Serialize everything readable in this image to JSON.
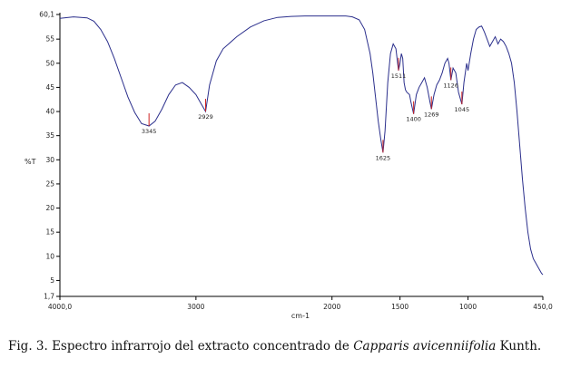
{
  "caption": {
    "prefix": "Fig. 3. Espectro infrarrojo del extracto concentrado de ",
    "species": "Capparis avicenniifolia",
    "suffix": " Kunth."
  },
  "chart_data": {
    "type": "line",
    "title": "",
    "xlabel": "cm-1",
    "ylabel": "%T",
    "xlim": [
      4000.0,
      450.0
    ],
    "ylim": [
      1.7,
      60.1
    ],
    "x_reversed": true,
    "x_ticks": [
      "4000,0",
      "3000",
      "2000",
      "1500",
      "1000",
      "450,0"
    ],
    "x_tick_values": [
      4000,
      3000,
      2000,
      1500,
      1000,
      450
    ],
    "y_ticks": [
      "60,1",
      "55",
      "50",
      "45",
      "40",
      "35",
      "30",
      "25",
      "20",
      "15",
      "10",
      "5",
      "1,7"
    ],
    "y_tick_values": [
      60.1,
      55,
      50,
      45,
      40,
      35,
      30,
      25,
      20,
      15,
      10,
      5,
      1.7
    ],
    "line_color": "#2b2f8c",
    "peak_marker_color": "#cc2222",
    "series": [
      {
        "x": [
          4000,
          3900,
          3800,
          3750,
          3700,
          3650,
          3600,
          3550,
          3500,
          3450,
          3400,
          3345,
          3300,
          3250,
          3200,
          3150,
          3100,
          3050,
          3000,
          2960,
          2929,
          2900,
          2850,
          2800,
          2700,
          2600,
          2500,
          2400,
          2300,
          2200,
          2100,
          2000,
          1900,
          1850,
          1800,
          1760,
          1720,
          1700,
          1680,
          1660,
          1640,
          1625,
          1610,
          1590,
          1570,
          1550,
          1530,
          1511,
          1500,
          1490,
          1480,
          1470,
          1460,
          1450,
          1430,
          1420,
          1400,
          1380,
          1360,
          1340,
          1320,
          1300,
          1280,
          1269,
          1250,
          1230,
          1210,
          1190,
          1170,
          1150,
          1140,
          1126,
          1110,
          1090,
          1070,
          1060,
          1045,
          1030,
          1020,
          1010,
          1000,
          980,
          960,
          940,
          920,
          900,
          880,
          860,
          840,
          820,
          800,
          780,
          760,
          740,
          720,
          700,
          680,
          660,
          640,
          620,
          600,
          580,
          560,
          540,
          520,
          500,
          480,
          460,
          450
        ],
        "y": [
          59.3,
          59.6,
          59.4,
          58.7,
          57.0,
          54.5,
          51.0,
          47.0,
          43.0,
          39.8,
          37.5,
          37.0,
          38.0,
          40.5,
          43.5,
          45.5,
          46.0,
          45.0,
          43.5,
          41.5,
          40.0,
          45.5,
          50.5,
          53.0,
          55.5,
          57.5,
          58.8,
          59.5,
          59.7,
          59.8,
          59.8,
          59.8,
          59.8,
          59.6,
          59.0,
          57.0,
          52.0,
          48.0,
          43.0,
          38.0,
          34.0,
          31.5,
          36.0,
          46.0,
          52.0,
          54.0,
          53.0,
          48.5,
          50.0,
          52.0,
          51.0,
          46.0,
          44.5,
          44.0,
          43.5,
          42.0,
          39.5,
          43.5,
          45.0,
          46.0,
          47.0,
          45.0,
          42.0,
          40.5,
          43.5,
          45.5,
          46.5,
          48.0,
          50.0,
          51.0,
          50.0,
          46.5,
          49.0,
          48.0,
          44.0,
          43.0,
          41.5,
          46.0,
          48.0,
          50.0,
          48.5,
          52.0,
          55.0,
          57.0,
          57.5,
          57.7,
          56.5,
          55.0,
          53.5,
          54.5,
          55.5,
          54.0,
          55.0,
          54.5,
          53.5,
          52.0,
          50.0,
          46.0,
          40.0,
          33.0,
          26.0,
          20.0,
          15.0,
          11.5,
          9.5,
          8.5,
          7.5,
          6.5,
          6.2
        ]
      }
    ],
    "peaks": [
      {
        "label": "3345",
        "x": 3345,
        "y": 37.0
      },
      {
        "label": "2929",
        "x": 2929,
        "y": 40.0
      },
      {
        "label": "1625",
        "x": 1625,
        "y": 31.5
      },
      {
        "label": "1511",
        "x": 1511,
        "y": 48.5
      },
      {
        "label": "1400",
        "x": 1400,
        "y": 39.5
      },
      {
        "label": "1269",
        "x": 1269,
        "y": 40.5
      },
      {
        "label": "1126",
        "x": 1126,
        "y": 46.5
      },
      {
        "label": "1045",
        "x": 1045,
        "y": 41.5
      }
    ]
  }
}
